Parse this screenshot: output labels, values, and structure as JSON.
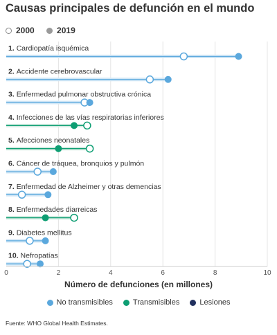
{
  "title": "Causas principales de defunción en el mundo",
  "year_legend": [
    {
      "label": "2000",
      "style": "hollow"
    },
    {
      "label": "2019",
      "style": "filled"
    }
  ],
  "category_legend": [
    {
      "label": "No transmisibles",
      "color": "#5ba8dd"
    },
    {
      "label": "Transmisibles",
      "color": "#0e9e73"
    },
    {
      "label": "Lesiones",
      "color": "#21305e"
    }
  ],
  "source": "Fuente: WHO Global Health Estimates.",
  "chart_data": {
    "type": "dumbbell",
    "xlabel": "Número de defunciones (en millones)",
    "xlim": [
      0,
      10
    ],
    "xticks": [
      0,
      2,
      4,
      6,
      8,
      10
    ],
    "series": [
      {
        "name": "2000",
        "values": [
          6.8,
          5.5,
          3.0,
          3.1,
          3.2,
          1.2,
          0.6,
          2.6,
          0.9,
          0.8
        ]
      },
      {
        "name": "2019",
        "values": [
          8.9,
          6.2,
          3.2,
          2.6,
          2.0,
          1.8,
          1.6,
          1.5,
          1.5,
          1.3
        ]
      }
    ],
    "categories": [
      {
        "rank": "1.",
        "label": "Cardiopatía isquémica",
        "group": "No transmisibles"
      },
      {
        "rank": "2.",
        "label": "Accidente cerebrovascular",
        "group": "No transmisibles"
      },
      {
        "rank": "3.",
        "label": "Enfermedad pulmonar obstructiva crónica",
        "group": "No transmisibles"
      },
      {
        "rank": "4.",
        "label": "Infecciones de las vías respiratorias inferiores",
        "group": "Transmisibles"
      },
      {
        "rank": "5.",
        "label": "Afecciones neonatales",
        "group": "Transmisibles"
      },
      {
        "rank": "6.",
        "label": "Cáncer de tráquea, bronquios y pulmón",
        "group": "No transmisibles"
      },
      {
        "rank": "7.",
        "label": "Enfermedad de Alzheimer y otras demencias",
        "group": "No transmisibles"
      },
      {
        "rank": "8.",
        "label": "Enfermedades diarreicas",
        "group": "Transmisibles"
      },
      {
        "rank": "9.",
        "label": "Diabetes mellitus",
        "group": "No transmisibles"
      },
      {
        "rank": "10.",
        "label": "Nefropatías",
        "group": "No transmisibles"
      }
    ]
  }
}
